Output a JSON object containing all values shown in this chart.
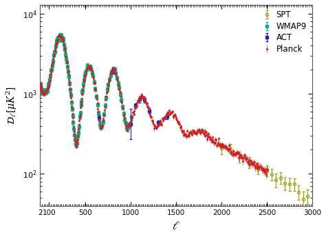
{
  "title": "",
  "xlabel": "$\\ell$",
  "ylabel": "$\\mathcal{D}_\\ell[\\mu K^2]$",
  "xlim": [
    2,
    3000
  ],
  "ylim": [
    40,
    13000
  ],
  "background_color": "#ffffff",
  "legend_labels": [
    "Planck",
    "WMAP9",
    "ACT",
    "SPT"
  ],
  "planck_color": "#cc2222",
  "wmap_color": "#11aa88",
  "act_color": "#2222bb",
  "spt_color": "#999900",
  "marker_size": 2.5,
  "errorbar_capsize": 1.5
}
